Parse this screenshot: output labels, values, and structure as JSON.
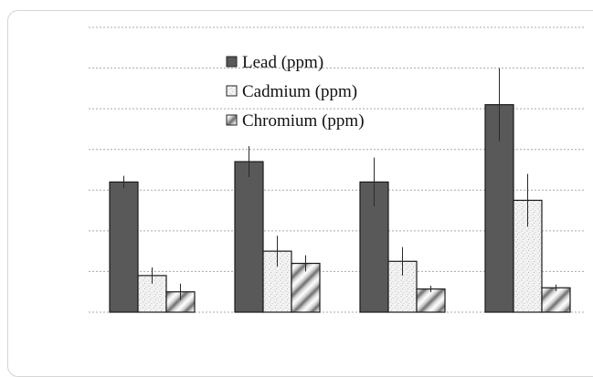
{
  "chart_data": {
    "type": "bar",
    "title": "",
    "xlabel": "",
    "ylabel": "",
    "categories": [
      "",
      "",
      "",
      ""
    ],
    "ylim": [
      0,
      7
    ],
    "grid": true,
    "legend_position": "top-center",
    "series": [
      {
        "name": "Lead (ppm)",
        "pattern": "solid",
        "color": "#595959",
        "values": [
          3.2,
          3.7,
          3.2,
          5.1
        ],
        "errors": [
          0.15,
          0.38,
          0.6,
          0.9
        ]
      },
      {
        "name": "Cadmium (ppm)",
        "pattern": "speckled",
        "color": "#f2f2f2",
        "values": [
          0.9,
          1.5,
          1.25,
          2.75
        ],
        "errors": [
          0.2,
          0.38,
          0.35,
          0.65
        ]
      },
      {
        "name": "Chromium (ppm)",
        "pattern": "diagonal-gradient",
        "color": "#9a9a9a",
        "values": [
          0.5,
          1.2,
          0.57,
          0.6
        ],
        "errors": [
          0.2,
          0.2,
          0.08,
          0.08
        ]
      }
    ]
  }
}
